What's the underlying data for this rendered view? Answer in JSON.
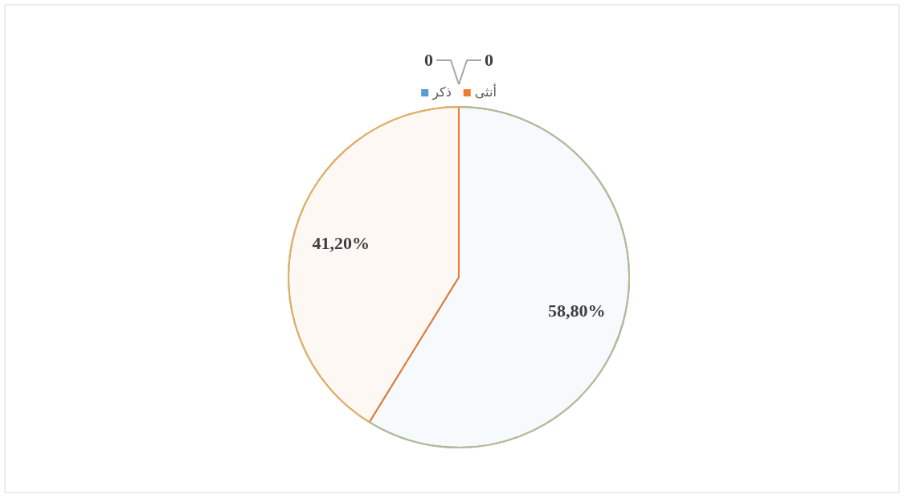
{
  "chart_data": {
    "type": "pie",
    "categories": [
      "ذكر",
      "أنثى",
      null,
      null
    ],
    "values": [
      58.8,
      41.2,
      0,
      0
    ],
    "colors": [
      "#5b9bd5",
      "#ed7d31",
      "#a5a5a5",
      "#ffc000"
    ],
    "value_labels": [
      "58,80%",
      "41,20%",
      "0",
      "0"
    ],
    "legend": "top"
  }
}
